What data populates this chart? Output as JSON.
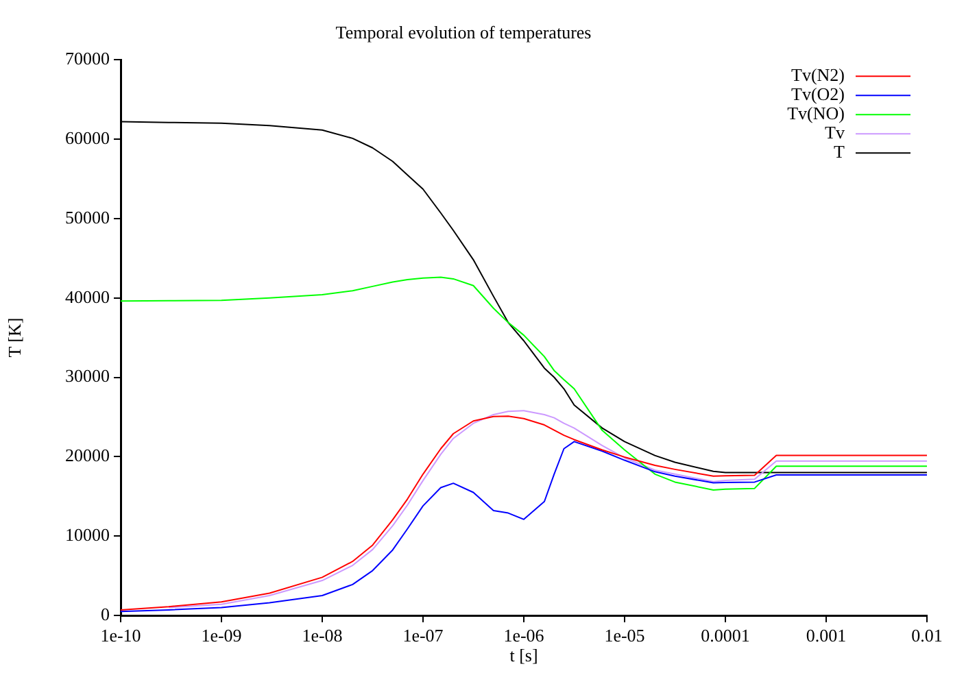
{
  "chart_data": {
    "type": "line",
    "title": "Temporal evolution of temperatures",
    "xlabel": "t [s]",
    "ylabel": "T [K]",
    "x": [
      1e-10,
      3e-10,
      1e-09,
      3e-09,
      1e-08,
      2e-08,
      3.16e-08,
      5e-08,
      7e-08,
      1e-07,
      1.5e-07,
      2e-07,
      3.16e-07,
      5e-07,
      7e-07,
      1e-06,
      1.6e-06,
      2e-06,
      2.5e-06,
      3.16e-06,
      6e-06,
      1e-05,
      2e-05,
      3.16e-05,
      7.6e-05,
      0.0001,
      0.000195,
      0.00032,
      0.01
    ],
    "series": [
      {
        "name": "Tv(N2)",
        "color": "#ff0000",
        "values": [
          700,
          1100,
          1700,
          2800,
          4800,
          6800,
          8850,
          12050,
          14650,
          17800,
          21000,
          22900,
          24500,
          25050,
          25100,
          24800,
          24000,
          23350,
          22700,
          22150,
          20850,
          19950,
          18900,
          18400,
          17550,
          17600,
          17650,
          20150,
          20150
        ]
      },
      {
        "name": "Tv(O2)",
        "color": "#0000ff",
        "values": [
          500,
          700,
          1000,
          1600,
          2500,
          3900,
          5650,
          8250,
          10900,
          13800,
          16100,
          16650,
          15500,
          13200,
          12900,
          12100,
          14350,
          17800,
          21000,
          21900,
          20700,
          19550,
          18100,
          17550,
          16700,
          16750,
          16800,
          17700,
          17700
        ]
      },
      {
        "name": "Tv(NO)",
        "color": "#00ff00",
        "values": [
          39600,
          39650,
          39700,
          40000,
          40400,
          40900,
          41450,
          42000,
          42300,
          42500,
          42600,
          42400,
          41550,
          38700,
          36900,
          35300,
          32600,
          30850,
          29700,
          28550,
          23300,
          20850,
          17800,
          16800,
          15800,
          15900,
          16000,
          18800,
          18800
        ]
      },
      {
        "name": "Tv",
        "color": "#cc99ff",
        "values": [
          null,
          1000,
          1400,
          2500,
          4400,
          6300,
          8300,
          11300,
          13900,
          17000,
          20300,
          22300,
          24200,
          25300,
          25700,
          25800,
          25300,
          24900,
          24200,
          23600,
          21400,
          19850,
          18300,
          17800,
          16850,
          17000,
          17150,
          19450,
          19450
        ]
      },
      {
        "name": "T",
        "color": "#000000",
        "values": [
          62200,
          62100,
          62000,
          61700,
          61150,
          60100,
          58900,
          57200,
          55500,
          53700,
          50700,
          48500,
          44800,
          40200,
          36900,
          34600,
          31150,
          30000,
          28550,
          26500,
          23600,
          21900,
          20150,
          19300,
          18150,
          18000,
          18000,
          18000,
          18000
        ]
      }
    ],
    "log": "x",
    "xlim": [
      1e-10,
      0.01
    ],
    "xticks": [
      {
        "value": 1e-10,
        "label": "1e-10"
      },
      {
        "value": 1e-09,
        "label": "1e-09"
      },
      {
        "value": 1e-08,
        "label": "1e-08"
      },
      {
        "value": 1e-07,
        "label": "1e-07"
      },
      {
        "value": 1e-06,
        "label": "1e-06"
      },
      {
        "value": 1e-05,
        "label": "1e-05"
      },
      {
        "value": 0.0001,
        "label": "0.0001"
      },
      {
        "value": 0.001,
        "label": "0.001"
      },
      {
        "value": 0.01,
        "label": "0.01"
      }
    ],
    "ylim": [
      0,
      70000
    ],
    "yticks": [
      0,
      10000,
      20000,
      30000,
      40000,
      50000,
      60000,
      70000
    ],
    "grid": false,
    "legend": "top right",
    "marker": "none",
    "line_style": "solid"
  }
}
